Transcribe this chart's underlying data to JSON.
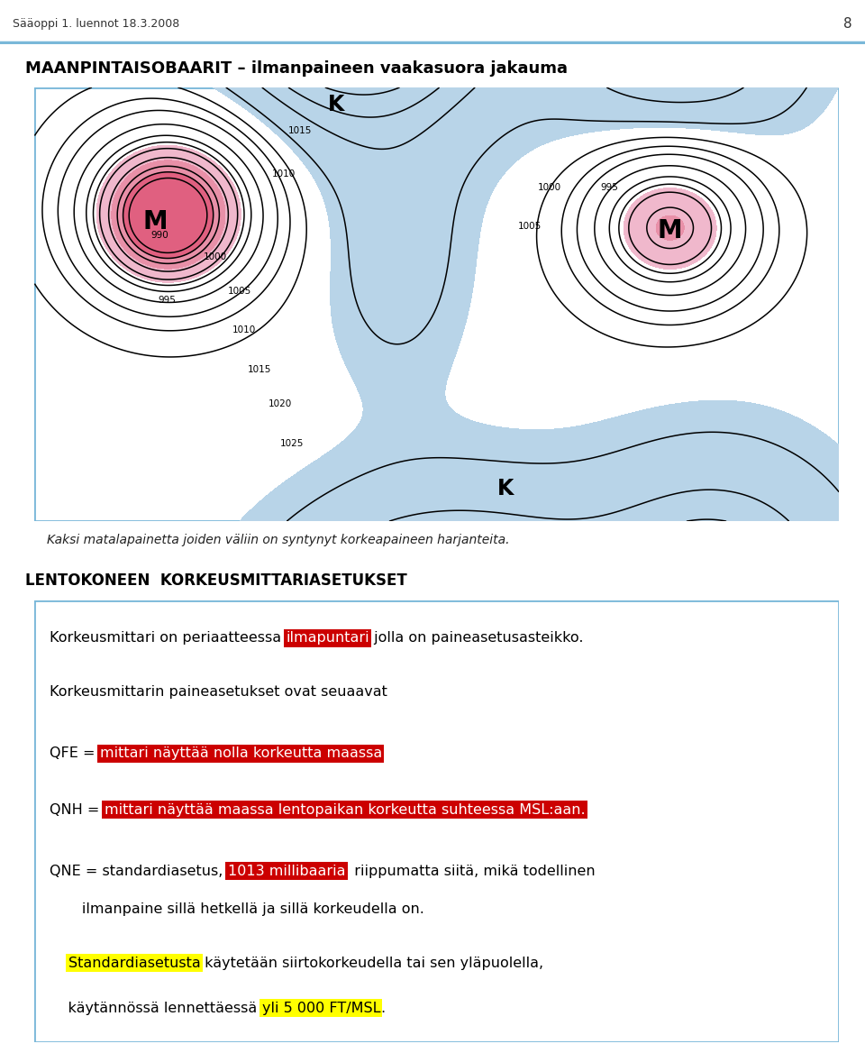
{
  "page_header": "Sääoppi 1. luennot 18.3.2008",
  "page_number": "8",
  "main_title": "MAANPINTAISOBAARIT – ilmanpaineen vaakasuora jakauma",
  "caption": "Kaksi matalapainetta joiden väliin on syntynyt korkeapaineen harjanteita.",
  "section_title": "LENTOKONEEN  KORKEUSMITTARIASETUKSET",
  "box_border_color": "#7ab8d9",
  "blue_fill": "#b8d4e8",
  "pink_fill_light": "#f0b8cc",
  "pink_fill_mid": "#e890a8",
  "pink_fill_dark": "#e06080"
}
